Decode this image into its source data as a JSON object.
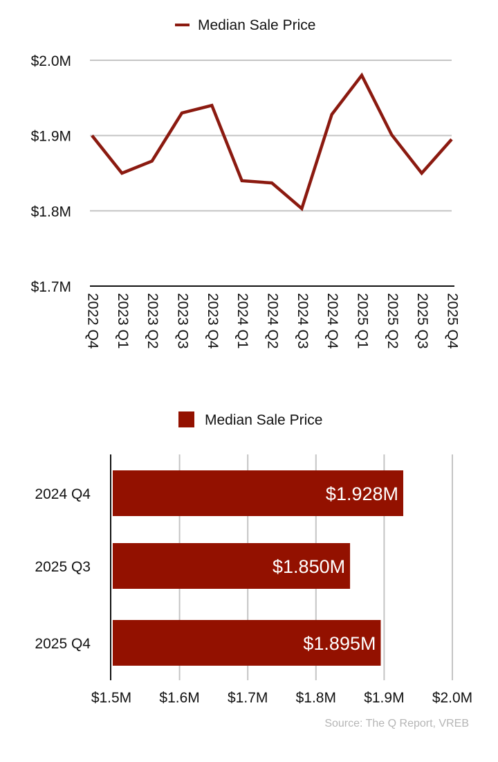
{
  "chart_data": [
    {
      "type": "line",
      "legend": [
        "Median Sale Price"
      ],
      "legend_position": "top-center",
      "color": "#8b1a10",
      "categories": [
        "2022 Q4",
        "2023 Q1",
        "2023 Q2",
        "2023 Q3",
        "2023 Q4",
        "2024 Q1",
        "2024 Q2",
        "2024 Q3",
        "2024 Q4",
        "2025 Q1",
        "2025 Q2",
        "2025 Q3",
        "2025 Q4"
      ],
      "series": [
        {
          "name": "Median Sale Price",
          "values": [
            1.9,
            1.85,
            1.866,
            1.93,
            1.94,
            1.84,
            1.837,
            1.803,
            1.928,
            1.98,
            1.901,
            1.85,
            1.895
          ]
        }
      ],
      "ylim": [
        1.7,
        2.0
      ],
      "yticks": [
        1.7,
        1.8,
        1.9,
        2.0
      ],
      "ytick_labels": [
        "$1.7M",
        "$1.8M",
        "$1.9M",
        "$2.0M"
      ],
      "grid": true
    },
    {
      "type": "bar",
      "orientation": "horizontal",
      "legend": [
        "Median Sale Price"
      ],
      "legend_position": "top-center",
      "color": "#931100",
      "categories": [
        "2024 Q4",
        "2025 Q3",
        "2025 Q4"
      ],
      "values": [
        1.928,
        1.85,
        1.895
      ],
      "data_labels": [
        "$1.928M",
        "$1.850M",
        "$1.895M"
      ],
      "xlim": [
        1.5,
        2.0
      ],
      "xticks": [
        1.5,
        1.6,
        1.7,
        1.8,
        1.9,
        2.0
      ],
      "xtick_labels": [
        "$1.5M",
        "$1.6M",
        "$1.7M",
        "$1.8M",
        "$1.9M",
        "$2.0M"
      ],
      "grid": true
    }
  ],
  "source": "Source: The Q Report, VREB"
}
